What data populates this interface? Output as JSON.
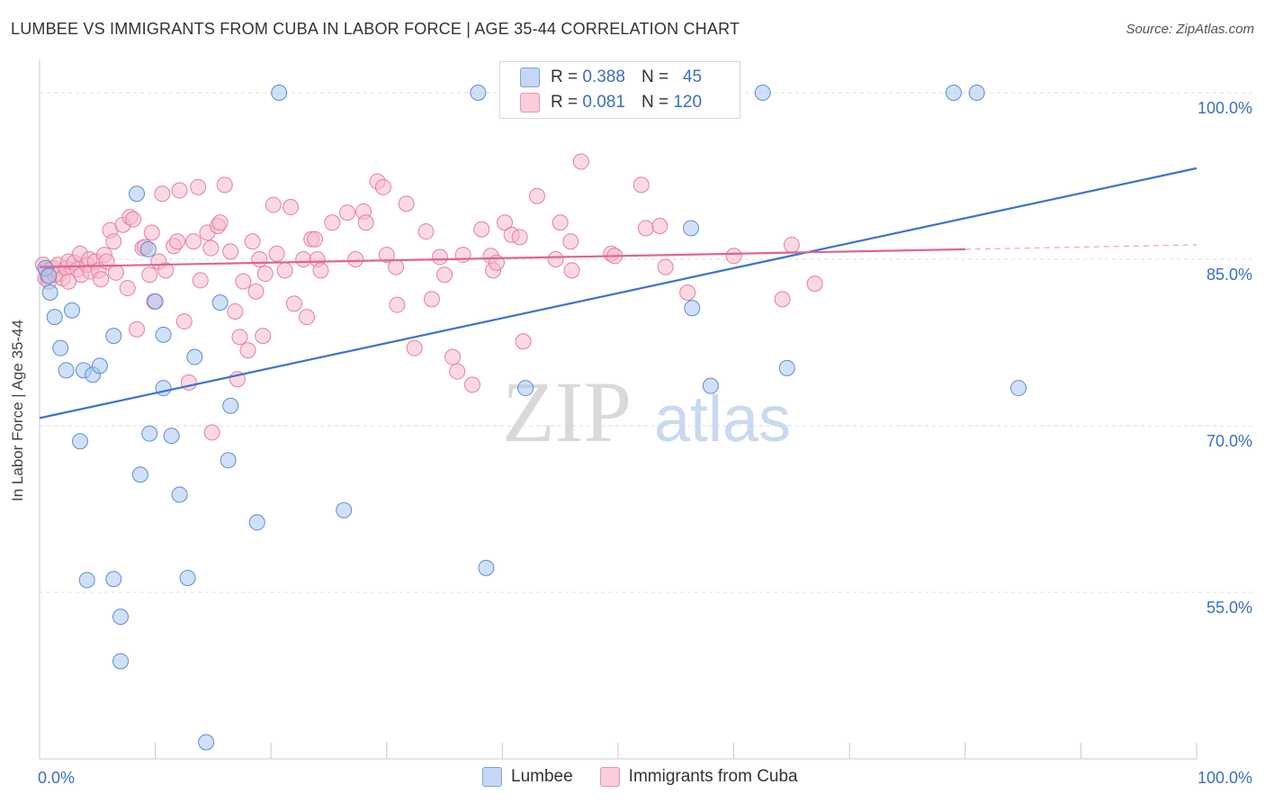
{
  "header": {
    "title": "LUMBEE VS IMMIGRANTS FROM CUBA IN LABOR FORCE | AGE 35-44 CORRELATION CHART",
    "source": "Source: ZipAtlas.com"
  },
  "watermark": {
    "zip": "ZIP",
    "atlas": "atlas"
  },
  "legend": {
    "rows": [
      {
        "r_label": "R =",
        "r_value": "0.388",
        "n_label": "N =",
        "n_value": "45",
        "color": "#a9c6f0"
      },
      {
        "r_label": "R =",
        "r_value": "0.081",
        "n_label": "N =",
        "n_value": "120",
        "color": "#f6b9cc"
      }
    ]
  },
  "bottom_legend": [
    "Lumbee",
    "Immigrants from Cuba"
  ],
  "chart_data": {
    "type": "scatter",
    "title": "LUMBEE VS IMMIGRANTS FROM CUBA IN LABOR FORCE | AGE 35-44 CORRELATION CHART",
    "xlabel": "",
    "ylabel": "In Labor Force | Age 35-44",
    "xlim": [
      0,
      100
    ],
    "ylim": [
      40,
      103
    ],
    "x_tick_labels": [
      "0.0%",
      "100.0%"
    ],
    "y_ticks": [
      55,
      70,
      85,
      100
    ],
    "y_tick_labels": [
      "55.0%",
      "70.0%",
      "85.0%",
      "100.0%"
    ],
    "grid": true,
    "legend_position": "top-center",
    "series": [
      {
        "name": "Lumbee",
        "color": "#a9c6f0",
        "stroke": "#5b8fd6",
        "trend": {
          "x": [
            0,
            100
          ],
          "y": [
            70.7,
            93.2
          ],
          "color": "#3a74d0"
        },
        "points": [
          [
            0.5,
            84.2
          ],
          [
            0.8,
            83.5
          ],
          [
            0.9,
            82.0
          ],
          [
            1.3,
            79.8
          ],
          [
            1.8,
            77.0
          ],
          [
            2.3,
            75.0
          ],
          [
            2.8,
            80.4
          ],
          [
            3.5,
            68.6
          ],
          [
            3.8,
            75.0
          ],
          [
            4.1,
            56.1
          ],
          [
            4.6,
            74.6
          ],
          [
            5.2,
            75.4
          ],
          [
            6.4,
            78.1
          ],
          [
            6.4,
            56.2
          ],
          [
            7.0,
            52.8
          ],
          [
            7.0,
            48.8
          ],
          [
            8.4,
            90.9
          ],
          [
            8.7,
            65.6
          ],
          [
            9.4,
            85.9
          ],
          [
            9.5,
            69.3
          ],
          [
            10.0,
            81.2
          ],
          [
            10.7,
            78.2
          ],
          [
            10.7,
            73.4
          ],
          [
            11.4,
            69.1
          ],
          [
            12.1,
            63.8
          ],
          [
            12.8,
            56.3
          ],
          [
            13.4,
            76.2
          ],
          [
            14.4,
            41.5
          ],
          [
            15.6,
            81.1
          ],
          [
            16.3,
            66.9
          ],
          [
            16.5,
            71.8
          ],
          [
            18.8,
            61.3
          ],
          [
            20.7,
            100.0
          ],
          [
            26.3,
            62.4
          ],
          [
            37.9,
            100.0
          ],
          [
            38.6,
            57.2
          ],
          [
            42.0,
            73.4
          ],
          [
            56.3,
            87.8
          ],
          [
            56.4,
            80.6
          ],
          [
            58.0,
            73.6
          ],
          [
            62.5,
            100.0
          ],
          [
            64.6,
            75.2
          ],
          [
            79.0,
            100.0
          ],
          [
            81.0,
            100.0
          ],
          [
            84.6,
            73.4
          ]
        ]
      },
      {
        "name": "Immigrants from Cuba",
        "color": "#f6b9cc",
        "stroke": "#e77fa2",
        "trend": {
          "x": [
            0,
            80
          ],
          "y": [
            84.3,
            85.9
          ],
          "dashed_to": 100,
          "color": "#e0648f"
        },
        "points": [
          [
            0.3,
            84.5
          ],
          [
            0.5,
            83.3
          ],
          [
            0.6,
            84.0
          ],
          [
            0.7,
            83.5
          ],
          [
            0.8,
            83.0
          ],
          [
            1.0,
            84.1
          ],
          [
            1.2,
            84.2
          ],
          [
            1.3,
            83.6
          ],
          [
            1.6,
            84.5
          ],
          [
            1.7,
            83.7
          ],
          [
            2.0,
            83.3
          ],
          [
            2.3,
            84.2
          ],
          [
            2.5,
            84.8
          ],
          [
            2.5,
            83.0
          ],
          [
            3.0,
            84.7
          ],
          [
            3.3,
            84.1
          ],
          [
            3.5,
            85.5
          ],
          [
            3.6,
            83.6
          ],
          [
            4.1,
            84.5
          ],
          [
            4.3,
            85.0
          ],
          [
            4.4,
            83.9
          ],
          [
            4.8,
            84.8
          ],
          [
            5.1,
            84.0
          ],
          [
            5.3,
            83.2
          ],
          [
            5.6,
            85.4
          ],
          [
            5.8,
            84.8
          ],
          [
            6.1,
            87.6
          ],
          [
            6.4,
            86.6
          ],
          [
            6.6,
            83.8
          ],
          [
            7.2,
            88.1
          ],
          [
            7.6,
            82.4
          ],
          [
            7.8,
            88.8
          ],
          [
            8.1,
            88.6
          ],
          [
            8.4,
            78.7
          ],
          [
            8.9,
            86.0
          ],
          [
            9.1,
            86.1
          ],
          [
            9.5,
            83.6
          ],
          [
            9.7,
            87.4
          ],
          [
            9.9,
            81.2
          ],
          [
            10.3,
            84.8
          ],
          [
            10.6,
            90.9
          ],
          [
            10.9,
            84.0
          ],
          [
            11.6,
            86.2
          ],
          [
            11.9,
            86.6
          ],
          [
            12.1,
            91.2
          ],
          [
            12.5,
            79.4
          ],
          [
            12.9,
            73.9
          ],
          [
            13.3,
            86.6
          ],
          [
            13.7,
            91.5
          ],
          [
            13.9,
            83.1
          ],
          [
            14.5,
            87.4
          ],
          [
            14.8,
            86.0
          ],
          [
            14.9,
            69.4
          ],
          [
            15.4,
            88.0
          ],
          [
            15.6,
            88.3
          ],
          [
            16.0,
            91.7
          ],
          [
            16.5,
            85.7
          ],
          [
            16.9,
            80.3
          ],
          [
            17.1,
            74.2
          ],
          [
            17.3,
            78.0
          ],
          [
            17.6,
            83.0
          ],
          [
            18.0,
            76.8
          ],
          [
            18.4,
            86.6
          ],
          [
            18.7,
            82.1
          ],
          [
            19.0,
            85.0
          ],
          [
            19.3,
            78.1
          ],
          [
            19.5,
            83.7
          ],
          [
            20.2,
            89.9
          ],
          [
            20.5,
            85.5
          ],
          [
            21.2,
            84.0
          ],
          [
            21.7,
            89.7
          ],
          [
            22.0,
            81.0
          ],
          [
            22.8,
            85.0
          ],
          [
            23.1,
            79.8
          ],
          [
            23.5,
            86.8
          ],
          [
            23.8,
            86.8
          ],
          [
            24.0,
            85.0
          ],
          [
            24.3,
            84.0
          ],
          [
            25.3,
            88.3
          ],
          [
            26.6,
            89.2
          ],
          [
            27.3,
            85.0
          ],
          [
            28.0,
            89.3
          ],
          [
            28.2,
            88.3
          ],
          [
            29.2,
            92.0
          ],
          [
            29.7,
            91.5
          ],
          [
            30.0,
            85.4
          ],
          [
            30.8,
            84.3
          ],
          [
            30.9,
            80.9
          ],
          [
            31.7,
            90.0
          ],
          [
            32.4,
            77.0
          ],
          [
            33.4,
            87.5
          ],
          [
            33.9,
            81.4
          ],
          [
            34.6,
            85.2
          ],
          [
            35.0,
            83.6
          ],
          [
            35.7,
            76.2
          ],
          [
            36.1,
            74.9
          ],
          [
            36.6,
            85.4
          ],
          [
            37.4,
            73.7
          ],
          [
            38.2,
            87.7
          ],
          [
            39.0,
            85.3
          ],
          [
            39.2,
            84.0
          ],
          [
            39.5,
            84.7
          ],
          [
            40.2,
            88.3
          ],
          [
            40.8,
            87.2
          ],
          [
            41.5,
            87.0
          ],
          [
            41.8,
            77.6
          ],
          [
            43.0,
            90.7
          ],
          [
            44.6,
            85.0
          ],
          [
            45.0,
            88.3
          ],
          [
            45.9,
            86.6
          ],
          [
            46.0,
            84.0
          ],
          [
            46.8,
            93.8
          ],
          [
            49.4,
            85.5
          ],
          [
            49.7,
            85.3
          ],
          [
            52.0,
            91.7
          ],
          [
            52.4,
            87.8
          ],
          [
            53.6,
            88.0
          ],
          [
            54.1,
            84.3
          ],
          [
            56.0,
            82.0
          ],
          [
            60.0,
            85.3
          ],
          [
            64.2,
            81.4
          ],
          [
            65.0,
            86.3
          ],
          [
            67.0,
            82.8
          ]
        ]
      }
    ]
  }
}
